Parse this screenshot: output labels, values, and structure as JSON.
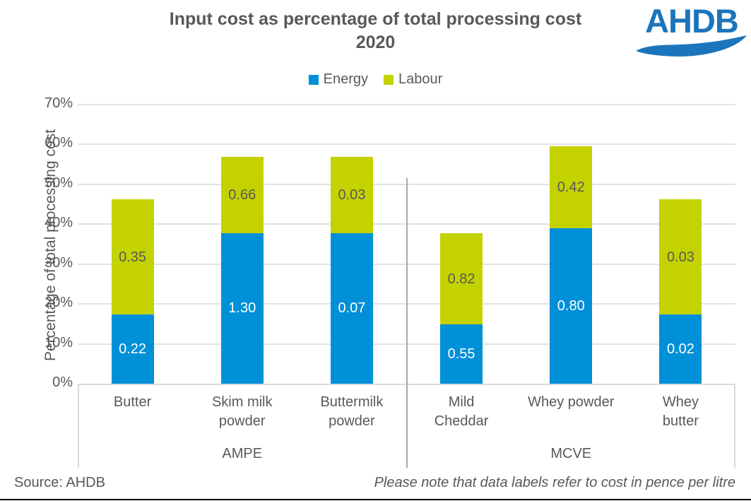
{
  "title": {
    "line1": "Input cost as percentage of total processing cost",
    "line2": "2020"
  },
  "logo": {
    "text": "AHDB",
    "color": "#1B75BC"
  },
  "y_axis": {
    "title": "Percentage of total processing cost",
    "ticks": [
      "0%",
      "10%",
      "20%",
      "30%",
      "40%",
      "50%",
      "60%",
      "70%"
    ]
  },
  "footer": {
    "source": "Source: AHDB",
    "note": "Please note that data labels refer to cost in pence per litre"
  },
  "chart_data": {
    "type": "bar",
    "stacked": true,
    "title": "Input cost as percentage of total processing cost 2020",
    "ylabel": "Percentage of total processing cost",
    "ylim": [
      0,
      70
    ],
    "y_tick_step": 10,
    "grid": true,
    "legend_position": "top",
    "categories": [
      "Butter",
      "Skim milk powder",
      "Buttermilk powder",
      "Mild Cheddar",
      "Whey powder",
      "Whey butter"
    ],
    "category_lines": [
      [
        "Butter"
      ],
      [
        "Skim milk",
        "powder"
      ],
      [
        "Buttermilk",
        "powder"
      ],
      [
        "Mild",
        "Cheddar"
      ],
      [
        "Whey powder"
      ],
      [
        "Whey",
        "butter"
      ]
    ],
    "groups": [
      {
        "label": "AMPE",
        "category_indexes": [
          0,
          1,
          2
        ]
      },
      {
        "label": "MCVE",
        "category_indexes": [
          3,
          4,
          5
        ]
      }
    ],
    "series": [
      {
        "name": "Energy",
        "color": "#0090D8",
        "label_color": "#FFFFFF",
        "values_pct": [
          17.3,
          37.8,
          37.8,
          14.8,
          39.0,
          17.3
        ],
        "data_labels_pence_per_litre": [
          "0.22",
          "1.30",
          "0.07",
          "0.55",
          "0.80",
          "0.02"
        ]
      },
      {
        "name": "Labour",
        "color": "#C4D200",
        "label_color": "#595959",
        "values_pct": [
          28.9,
          19.0,
          19.0,
          22.9,
          20.5,
          28.9
        ],
        "data_labels_pence_per_litre": [
          "0.35",
          "0.66",
          "0.03",
          "0.82",
          "0.42",
          "0.03"
        ]
      }
    ],
    "annotation": "Please note that data labels refer to cost in pence per litre"
  }
}
